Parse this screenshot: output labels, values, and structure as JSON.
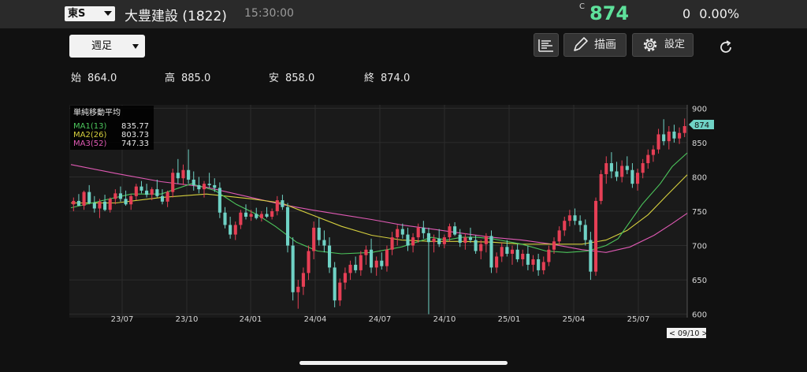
{
  "header": {
    "market": "東S",
    "name": "大豊建設",
    "code": "(1822)",
    "time": "15:30:00",
    "price_mark": "C",
    "price": "874",
    "change": "0",
    "change_pct": "0.00%"
  },
  "toolbar": {
    "period": "週足",
    "draw_label": "描画",
    "settings_label": "設定"
  },
  "ohlc": {
    "open_label": "始",
    "open": "864.0",
    "high_label": "高",
    "high": "885.0",
    "low_label": "安",
    "low": "858.0",
    "close_label": "終",
    "close": "874.0"
  },
  "legend": {
    "title": "単純移動平均",
    "items": [
      {
        "name": "MA1(13)",
        "value": "835.77"
      },
      {
        "name": "MA2(26)",
        "value": "803.73"
      },
      {
        "name": "MA3(52)",
        "value": "747.33"
      }
    ]
  },
  "colors": {
    "up": "#e63f55",
    "down": "#6fd2c5",
    "ma1": "#4cc65c",
    "ma2": "#d6d03e",
    "ma3": "#e05ab4",
    "price_tag": "#6fd2c5"
  },
  "chart_data": {
    "type": "candlestick",
    "ylim": [
      595,
      905
    ],
    "yticks": [
      900,
      850,
      800,
      750,
      700,
      650,
      600
    ],
    "xticks": [
      "23/07",
      "23/10",
      "24/01",
      "24/04",
      "24/07",
      "24/10",
      "25/01",
      "25/04",
      "25/07"
    ],
    "last_price_tag": "874",
    "cursor_date": "< 09/10 >",
    "ma1": [
      [
        0,
        755
      ],
      [
        10,
        765
      ],
      [
        20,
        775
      ],
      [
        30,
        775
      ],
      [
        40,
        790
      ],
      [
        48,
        780
      ],
      [
        55,
        760
      ],
      [
        62,
        745
      ],
      [
        68,
        728
      ],
      [
        75,
        705
      ],
      [
        82,
        692
      ],
      [
        90,
        688
      ],
      [
        100,
        690
      ],
      [
        110,
        698
      ],
      [
        120,
        712
      ],
      [
        125,
        708
      ],
      [
        130,
        712
      ],
      [
        135,
        712
      ],
      [
        140,
        710
      ],
      [
        150,
        702
      ],
      [
        158,
        692
      ],
      [
        165,
        690
      ],
      [
        172,
        692
      ],
      [
        178,
        700
      ],
      [
        182,
        710
      ],
      [
        190,
        760
      ],
      [
        196,
        790
      ],
      [
        200,
        815
      ],
      [
        205,
        835
      ]
    ],
    "ma2": [
      [
        0,
        762
      ],
      [
        15,
        762
      ],
      [
        30,
        770
      ],
      [
        45,
        775
      ],
      [
        60,
        768
      ],
      [
        70,
        762
      ],
      [
        80,
        745
      ],
      [
        90,
        728
      ],
      [
        100,
        715
      ],
      [
        110,
        708
      ],
      [
        120,
        706
      ],
      [
        130,
        706
      ],
      [
        140,
        705
      ],
      [
        150,
        702
      ],
      [
        160,
        702
      ],
      [
        170,
        702
      ],
      [
        178,
        708
      ],
      [
        185,
        722
      ],
      [
        192,
        745
      ],
      [
        198,
        772
      ],
      [
        205,
        803
      ]
    ],
    "ma3": [
      [
        0,
        818
      ],
      [
        15,
        805
      ],
      [
        30,
        793
      ],
      [
        45,
        785
      ],
      [
        58,
        772
      ],
      [
        70,
        760
      ],
      [
        80,
        752
      ],
      [
        90,
        745
      ],
      [
        100,
        738
      ],
      [
        110,
        730
      ],
      [
        120,
        724
      ],
      [
        130,
        718
      ],
      [
        140,
        712
      ],
      [
        150,
        708
      ],
      [
        160,
        702
      ],
      [
        170,
        694
      ],
      [
        178,
        690
      ],
      [
        186,
        698
      ],
      [
        194,
        715
      ],
      [
        200,
        732
      ],
      [
        205,
        747
      ]
    ],
    "candles": [
      {
        "o": 760,
        "h": 770,
        "l": 750,
        "c": 765
      },
      {
        "o": 765,
        "h": 775,
        "l": 758,
        "c": 758
      },
      {
        "o": 758,
        "h": 780,
        "l": 752,
        "c": 778
      },
      {
        "o": 778,
        "h": 788,
        "l": 760,
        "c": 762
      },
      {
        "o": 762,
        "h": 772,
        "l": 748,
        "c": 754
      },
      {
        "o": 754,
        "h": 768,
        "l": 740,
        "c": 764
      },
      {
        "o": 764,
        "h": 774,
        "l": 750,
        "c": 752
      },
      {
        "o": 752,
        "h": 770,
        "l": 748,
        "c": 768
      },
      {
        "o": 768,
        "h": 782,
        "l": 760,
        "c": 776
      },
      {
        "o": 776,
        "h": 786,
        "l": 764,
        "c": 768
      },
      {
        "o": 768,
        "h": 780,
        "l": 758,
        "c": 760
      },
      {
        "o": 760,
        "h": 775,
        "l": 752,
        "c": 772
      },
      {
        "o": 772,
        "h": 790,
        "l": 766,
        "c": 786
      },
      {
        "o": 786,
        "h": 794,
        "l": 776,
        "c": 780
      },
      {
        "o": 780,
        "h": 790,
        "l": 770,
        "c": 774
      },
      {
        "o": 774,
        "h": 785,
        "l": 766,
        "c": 782
      },
      {
        "o": 782,
        "h": 796,
        "l": 770,
        "c": 772
      },
      {
        "o": 772,
        "h": 782,
        "l": 760,
        "c": 764
      },
      {
        "o": 764,
        "h": 780,
        "l": 756,
        "c": 778
      },
      {
        "o": 778,
        "h": 812,
        "l": 770,
        "c": 806
      },
      {
        "o": 806,
        "h": 826,
        "l": 790,
        "c": 798
      },
      {
        "o": 798,
        "h": 818,
        "l": 788,
        "c": 810
      },
      {
        "o": 810,
        "h": 840,
        "l": 790,
        "c": 796
      },
      {
        "o": 796,
        "h": 808,
        "l": 780,
        "c": 788
      },
      {
        "o": 788,
        "h": 800,
        "l": 776,
        "c": 782
      },
      {
        "o": 782,
        "h": 794,
        "l": 770,
        "c": 790
      },
      {
        "o": 790,
        "h": 806,
        "l": 784,
        "c": 788
      },
      {
        "o": 788,
        "h": 798,
        "l": 778,
        "c": 784
      },
      {
        "o": 784,
        "h": 792,
        "l": 740,
        "c": 748
      },
      {
        "o": 748,
        "h": 756,
        "l": 725,
        "c": 730
      },
      {
        "o": 730,
        "h": 742,
        "l": 710,
        "c": 716
      },
      {
        "o": 716,
        "h": 735,
        "l": 708,
        "c": 730
      },
      {
        "o": 730,
        "h": 752,
        "l": 724,
        "c": 748
      },
      {
        "o": 748,
        "h": 760,
        "l": 738,
        "c": 742
      },
      {
        "o": 742,
        "h": 752,
        "l": 736,
        "c": 746
      },
      {
        "o": 746,
        "h": 755,
        "l": 738,
        "c": 740
      },
      {
        "o": 740,
        "h": 750,
        "l": 735,
        "c": 746
      },
      {
        "o": 746,
        "h": 756,
        "l": 740,
        "c": 742
      },
      {
        "o": 742,
        "h": 754,
        "l": 738,
        "c": 750
      },
      {
        "o": 750,
        "h": 772,
        "l": 744,
        "c": 766
      },
      {
        "o": 766,
        "h": 774,
        "l": 752,
        "c": 756
      },
      {
        "o": 756,
        "h": 762,
        "l": 690,
        "c": 700
      },
      {
        "o": 700,
        "h": 712,
        "l": 620,
        "c": 632
      },
      {
        "o": 632,
        "h": 650,
        "l": 608,
        "c": 640
      },
      {
        "o": 640,
        "h": 668,
        "l": 628,
        "c": 660
      },
      {
        "o": 660,
        "h": 700,
        "l": 650,
        "c": 692
      },
      {
        "o": 692,
        "h": 735,
        "l": 680,
        "c": 726
      },
      {
        "o": 726,
        "h": 740,
        "l": 700,
        "c": 708
      },
      {
        "o": 708,
        "h": 722,
        "l": 690,
        "c": 700
      },
      {
        "o": 700,
        "h": 712,
        "l": 660,
        "c": 668
      },
      {
        "o": 668,
        "h": 676,
        "l": 610,
        "c": 620
      },
      {
        "o": 620,
        "h": 652,
        "l": 612,
        "c": 646
      },
      {
        "o": 646,
        "h": 668,
        "l": 636,
        "c": 660
      },
      {
        "o": 660,
        "h": 678,
        "l": 650,
        "c": 672
      },
      {
        "o": 672,
        "h": 684,
        "l": 660,
        "c": 664
      },
      {
        "o": 664,
        "h": 692,
        "l": 656,
        "c": 686
      },
      {
        "o": 686,
        "h": 700,
        "l": 672,
        "c": 694
      },
      {
        "o": 694,
        "h": 710,
        "l": 660,
        "c": 668
      },
      {
        "o": 668,
        "h": 684,
        "l": 656,
        "c": 678
      },
      {
        "o": 678,
        "h": 690,
        "l": 665,
        "c": 670
      },
      {
        "o": 670,
        "h": 700,
        "l": 662,
        "c": 694
      },
      {
        "o": 694,
        "h": 720,
        "l": 686,
        "c": 712
      },
      {
        "o": 712,
        "h": 730,
        "l": 700,
        "c": 724
      },
      {
        "o": 724,
        "h": 732,
        "l": 710,
        "c": 716
      },
      {
        "o": 716,
        "h": 726,
        "l": 692,
        "c": 700
      },
      {
        "o": 700,
        "h": 718,
        "l": 690,
        "c": 712
      },
      {
        "o": 712,
        "h": 732,
        "l": 704,
        "c": 726
      },
      {
        "o": 726,
        "h": 736,
        "l": 710,
        "c": 718
      },
      {
        "o": 718,
        "h": 726,
        "l": 600,
        "c": 705
      },
      {
        "o": 705,
        "h": 716,
        "l": 690,
        "c": 710
      },
      {
        "o": 710,
        "h": 724,
        "l": 698,
        "c": 702
      },
      {
        "o": 702,
        "h": 716,
        "l": 696,
        "c": 712
      },
      {
        "o": 712,
        "h": 732,
        "l": 706,
        "c": 728
      },
      {
        "o": 728,
        "h": 734,
        "l": 714,
        "c": 716
      },
      {
        "o": 716,
        "h": 724,
        "l": 698,
        "c": 704
      },
      {
        "o": 704,
        "h": 718,
        "l": 694,
        "c": 712
      },
      {
        "o": 712,
        "h": 726,
        "l": 704,
        "c": 708
      },
      {
        "o": 708,
        "h": 715,
        "l": 688,
        "c": 692
      },
      {
        "o": 692,
        "h": 708,
        "l": 680,
        "c": 702
      },
      {
        "o": 702,
        "h": 718,
        "l": 690,
        "c": 714
      },
      {
        "o": 714,
        "h": 722,
        "l": 660,
        "c": 668
      },
      {
        "o": 668,
        "h": 690,
        "l": 660,
        "c": 684
      },
      {
        "o": 684,
        "h": 704,
        "l": 676,
        "c": 698
      },
      {
        "o": 698,
        "h": 708,
        "l": 684,
        "c": 688
      },
      {
        "o": 688,
        "h": 700,
        "l": 672,
        "c": 694
      },
      {
        "o": 694,
        "h": 702,
        "l": 676,
        "c": 680
      },
      {
        "o": 680,
        "h": 694,
        "l": 670,
        "c": 688
      },
      {
        "o": 688,
        "h": 700,
        "l": 664,
        "c": 672
      },
      {
        "o": 672,
        "h": 686,
        "l": 662,
        "c": 680
      },
      {
        "o": 680,
        "h": 688,
        "l": 656,
        "c": 664
      },
      {
        "o": 664,
        "h": 684,
        "l": 658,
        "c": 676
      },
      {
        "o": 676,
        "h": 700,
        "l": 670,
        "c": 694
      },
      {
        "o": 694,
        "h": 712,
        "l": 688,
        "c": 706
      },
      {
        "o": 706,
        "h": 728,
        "l": 700,
        "c": 722
      },
      {
        "o": 722,
        "h": 742,
        "l": 714,
        "c": 736
      },
      {
        "o": 736,
        "h": 752,
        "l": 728,
        "c": 744
      },
      {
        "o": 744,
        "h": 754,
        "l": 730,
        "c": 736
      },
      {
        "o": 736,
        "h": 744,
        "l": 720,
        "c": 730
      },
      {
        "o": 730,
        "h": 738,
        "l": 700,
        "c": 708
      },
      {
        "o": 708,
        "h": 720,
        "l": 650,
        "c": 662
      },
      {
        "o": 662,
        "h": 770,
        "l": 656,
        "c": 765
      },
      {
        "o": 765,
        "h": 810,
        "l": 760,
        "c": 804
      },
      {
        "o": 804,
        "h": 830,
        "l": 790,
        "c": 820
      },
      {
        "o": 820,
        "h": 836,
        "l": 798,
        "c": 808
      },
      {
        "o": 808,
        "h": 822,
        "l": 794,
        "c": 800
      },
      {
        "o": 800,
        "h": 824,
        "l": 792,
        "c": 816
      },
      {
        "o": 816,
        "h": 830,
        "l": 804,
        "c": 810
      },
      {
        "o": 810,
        "h": 820,
        "l": 784,
        "c": 790
      },
      {
        "o": 790,
        "h": 812,
        "l": 780,
        "c": 806
      },
      {
        "o": 806,
        "h": 826,
        "l": 798,
        "c": 820
      },
      {
        "o": 820,
        "h": 840,
        "l": 812,
        "c": 832
      },
      {
        "o": 832,
        "h": 846,
        "l": 822,
        "c": 840
      },
      {
        "o": 840,
        "h": 870,
        "l": 834,
        "c": 862
      },
      {
        "o": 862,
        "h": 884,
        "l": 846,
        "c": 852
      },
      {
        "o": 852,
        "h": 874,
        "l": 840,
        "c": 866
      },
      {
        "o": 866,
        "h": 876,
        "l": 850,
        "c": 856
      },
      {
        "o": 856,
        "h": 872,
        "l": 848,
        "c": 864
      },
      {
        "o": 864,
        "h": 885,
        "l": 858,
        "c": 874
      }
    ]
  }
}
